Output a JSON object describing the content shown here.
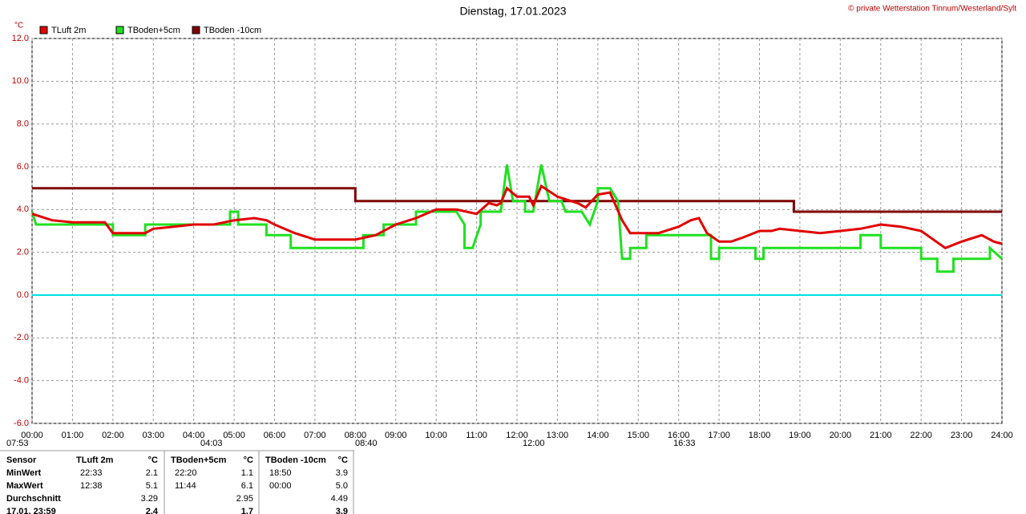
{
  "chart_data": {
    "type": "line",
    "title": "Dienstag, 17.01.2023",
    "copyright": "© private Wetterstation Tinnum/Westerland/Sylt",
    "y_unit": "°C",
    "xlim": [
      0,
      24
    ],
    "xticks": [
      {
        "value": 0,
        "label": "00:00"
      },
      {
        "value": 1,
        "label": "01:00"
      },
      {
        "value": 2,
        "label": "02:00"
      },
      {
        "value": 3,
        "label": "03:00"
      },
      {
        "value": 4,
        "label": "04:00"
      },
      {
        "value": 5,
        "label": "05:00"
      },
      {
        "value": 6,
        "label": "06:00"
      },
      {
        "value": 7,
        "label": "07:00"
      },
      {
        "value": 8,
        "label": "08:00"
      },
      {
        "value": 9,
        "label": "09:00"
      },
      {
        "value": 10,
        "label": "10:00"
      },
      {
        "value": 11,
        "label": "11:00"
      },
      {
        "value": 12,
        "label": "12:00"
      },
      {
        "value": 13,
        "label": "13:00"
      },
      {
        "value": 14,
        "label": "14:00"
      },
      {
        "value": 15,
        "label": "15:00"
      },
      {
        "value": 16,
        "label": "16:00"
      },
      {
        "value": 17,
        "label": "17:00"
      },
      {
        "value": 18,
        "label": "18:00"
      },
      {
        "value": 19,
        "label": "19:00"
      },
      {
        "value": 20,
        "label": "20:00"
      },
      {
        "value": 21,
        "label": "21:00"
      },
      {
        "value": 22,
        "label": "22:00"
      },
      {
        "value": 23,
        "label": "23:00"
      },
      {
        "value": 24,
        "label": "24:00"
      }
    ],
    "ylim": [
      -6,
      12
    ],
    "yticks": [
      {
        "value": -6,
        "label": "-6.0"
      },
      {
        "value": -4,
        "label": "-4.0"
      },
      {
        "value": -2,
        "label": "-2.0"
      },
      {
        "value": 0,
        "label": "0.0"
      },
      {
        "value": 2,
        "label": "2.0"
      },
      {
        "value": 4,
        "label": "4.0"
      },
      {
        "value": 6,
        "label": "6.0"
      },
      {
        "value": 8,
        "label": "8.0"
      },
      {
        "value": 10,
        "label": "10.0"
      },
      {
        "value": 12,
        "label": "12.0"
      }
    ],
    "grid": true,
    "reference_line": {
      "value": 0,
      "color": "#00e0e0"
    },
    "series": [
      {
        "name": "TLuft 2m",
        "color": "#e00000",
        "x": [
          0,
          0.5,
          1,
          1.5,
          1.8,
          2,
          2.5,
          2.8,
          3,
          3.5,
          4,
          4.5,
          5,
          5.5,
          5.8,
          6,
          6.5,
          7,
          7.5,
          8,
          8.5,
          9,
          9.5,
          10,
          10.5,
          11,
          11.3,
          11.5,
          11.6,
          11.75,
          12,
          12.3,
          12.4,
          12.6,
          13,
          13.5,
          13.7,
          14,
          14.3,
          14.6,
          14.8,
          15,
          15.5,
          16,
          16.3,
          16.5,
          16.7,
          17,
          17.3,
          17.6,
          18,
          18.3,
          18.5,
          19,
          19.5,
          20,
          20.5,
          21,
          21.5,
          22,
          22.3,
          22.6,
          23,
          23.5,
          23.8,
          24
        ],
        "values": [
          3.8,
          3.5,
          3.4,
          3.4,
          3.4,
          2.9,
          2.9,
          2.9,
          3.1,
          3.2,
          3.3,
          3.3,
          3.5,
          3.6,
          3.5,
          3.3,
          2.9,
          2.6,
          2.6,
          2.6,
          2.8,
          3.3,
          3.6,
          4.0,
          4.0,
          3.8,
          4.3,
          4.2,
          4.3,
          5.0,
          4.6,
          4.6,
          4.2,
          5.1,
          4.6,
          4.3,
          4.1,
          4.7,
          4.8,
          3.5,
          2.9,
          2.9,
          2.9,
          3.2,
          3.5,
          3.6,
          2.9,
          2.5,
          2.5,
          2.7,
          3.0,
          3.0,
          3.1,
          3.0,
          2.9,
          3.0,
          3.1,
          3.3,
          3.2,
          3.0,
          2.6,
          2.2,
          2.5,
          2.8,
          2.5,
          2.4
        ]
      },
      {
        "name": "TBoden+5cm",
        "color": "#20e020",
        "x": [
          0,
          0.1,
          2,
          2,
          2.8,
          2.8,
          4.9,
          4.9,
          5.1,
          5.1,
          5.8,
          5.8,
          6.4,
          6.4,
          8.2,
          8.2,
          8.7,
          8.7,
          9.5,
          9.5,
          10.5,
          10.7,
          10.7,
          10.9,
          11.1,
          11.1,
          11.6,
          11.75,
          11.9,
          12.2,
          12.2,
          12.4,
          12.6,
          12.8,
          13.1,
          13.2,
          13.6,
          13.8,
          14,
          14,
          14.3,
          14.5,
          14.6,
          14.8,
          14.8,
          15.2,
          15.2,
          16.8,
          16.8,
          17,
          17,
          17.9,
          17.9,
          18.1,
          18.1,
          20.5,
          20.5,
          21,
          21,
          22,
          22,
          22.4,
          22.4,
          22.8,
          22.8,
          23.7,
          23.7,
          24
        ],
        "values": [
          3.9,
          3.3,
          3.3,
          2.8,
          2.8,
          3.3,
          3.3,
          3.9,
          3.9,
          3.3,
          3.3,
          2.8,
          2.8,
          2.2,
          2.2,
          2.8,
          2.8,
          3.3,
          3.3,
          3.9,
          3.9,
          3.3,
          2.2,
          2.2,
          3.3,
          3.9,
          3.9,
          6.1,
          4.4,
          4.4,
          3.9,
          3.9,
          6.1,
          4.4,
          4.4,
          3.9,
          3.9,
          3.3,
          4.4,
          5.0,
          5.0,
          4.4,
          1.7,
          1.7,
          2.2,
          2.2,
          2.8,
          2.8,
          1.7,
          1.7,
          2.2,
          2.2,
          1.7,
          1.7,
          2.2,
          2.2,
          2.8,
          2.8,
          2.2,
          2.2,
          1.7,
          1.7,
          1.1,
          1.1,
          1.7,
          1.7,
          2.2,
          1.7
        ]
      },
      {
        "name": "TBoden -10cm",
        "color": "#800000",
        "x": [
          0,
          8,
          8,
          18.85,
          18.85,
          24
        ],
        "values": [
          5.0,
          5.0,
          4.4,
          4.4,
          3.9,
          3.9
        ]
      }
    ],
    "sun_events": [
      "07:53",
      "04:03",
      "08:40",
      "12:00",
      "16:33"
    ]
  },
  "table": {
    "header": [
      "Sensor",
      "TLuft 2m",
      "°C",
      "TBoden+5cm",
      "°C",
      "TBoden -10cm",
      "°C"
    ],
    "rows": [
      [
        "MinWert",
        "22:33",
        "2.1",
        "22:20",
        "1.1",
        "18:50",
        "3.9"
      ],
      [
        "MaxWert",
        "12:38",
        "5.1",
        "11:44",
        "6.1",
        "00:00",
        "5.0"
      ],
      [
        "Durchschnitt",
        null,
        "3.29",
        null,
        "2.95",
        null,
        "4.49"
      ],
      [
        "17.01. 23:59",
        null,
        "2.4",
        null,
        "1.7",
        null,
        "3.9"
      ]
    ]
  }
}
